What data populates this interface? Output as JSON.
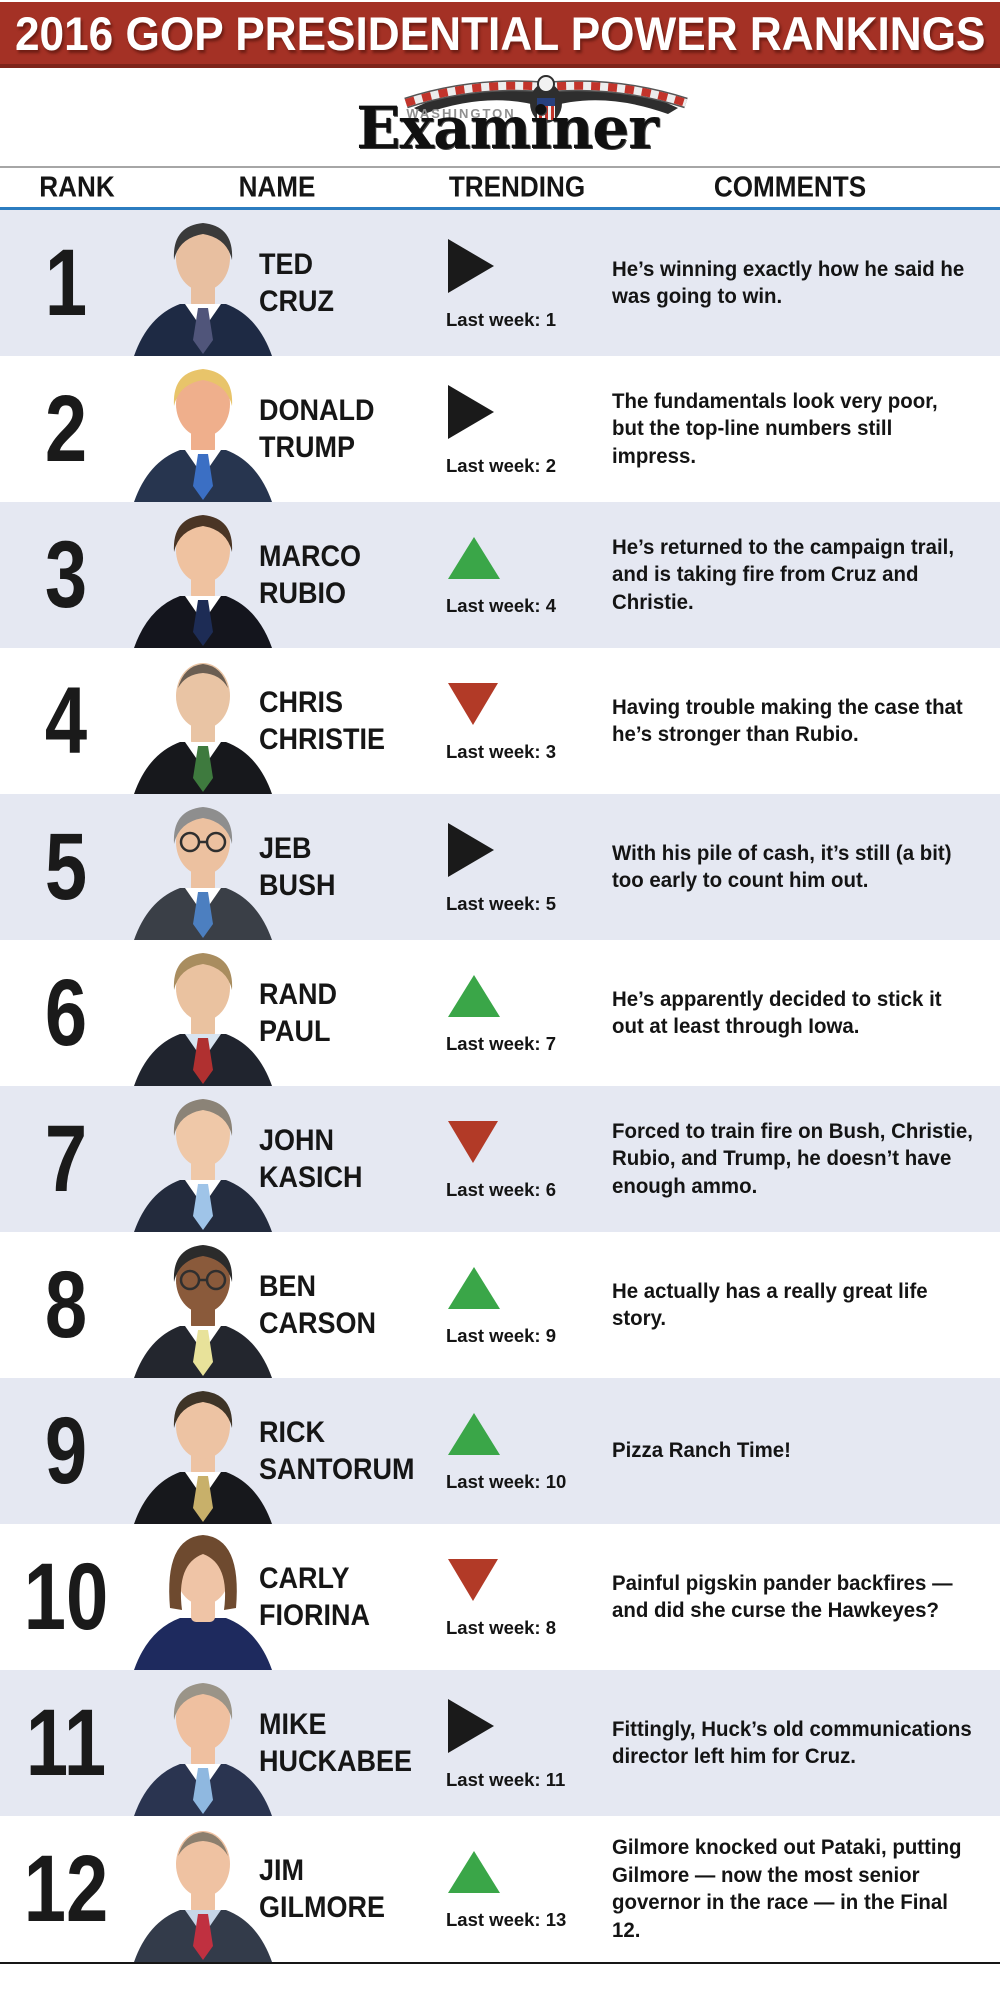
{
  "banner": {
    "title": "2016 GOP PRESIDENTIAL POWER RANKINGS"
  },
  "masthead": {
    "kicker": "WASHINGTON",
    "name": "Examiner",
    "eagle_icon": "eagle-with-striped-ribbon"
  },
  "columns": [
    "RANK",
    "NAME",
    "TRENDING",
    "COMMENTS"
  ],
  "last_week_prefix": "Last week:",
  "accent": {
    "banner_red": "#A43125",
    "divider_blue": "#2B7CC0",
    "row_alt_bg": "#E5E8F2",
    "trend_up_green": "#3AA648",
    "trend_down_red": "#B23A27",
    "trend_steady_black": "#1A1A1A"
  },
  "rows": [
    {
      "rank": "1",
      "name_line1": "TED",
      "name_line2": "CRUZ",
      "trend": "steady",
      "last_week": "1",
      "comment": "He’s winning exactly how he said he was going to win.",
      "photo": {
        "hair": "#3A3A3A",
        "skin": "#E8BFA0",
        "suit": "#1E2A44",
        "shirt": "#FFFFFF",
        "tie": "#50557A",
        "hair_style": "short",
        "glasses": false
      }
    },
    {
      "rank": "2",
      "name_line1": "DONALD",
      "name_line2": "TRUMP",
      "trend": "steady",
      "last_week": "2",
      "comment": "The fundamentals look very poor, but the top-line numbers still impress.",
      "photo": {
        "hair": "#E8C46A",
        "skin": "#EFAF8C",
        "suit": "#27354F",
        "shirt": "#FFFFFF",
        "tie": "#3B6FC4",
        "hair_style": "short",
        "glasses": false
      }
    },
    {
      "rank": "3",
      "name_line1": "MARCO",
      "name_line2": "RUBIO",
      "trend": "up",
      "last_week": "4",
      "comment": "He’s returned to the campaign trail, and is taking fire from Cruz and Christie.",
      "photo": {
        "hair": "#4A3525",
        "skin": "#EFC2A0",
        "suit": "#14151D",
        "shirt": "#FFFFFF",
        "tie": "#1D2C55",
        "hair_style": "short",
        "glasses": false
      }
    },
    {
      "rank": "4",
      "name_line1": "CHRIS",
      "name_line2": "CHRISTIE",
      "trend": "down",
      "last_week": "3",
      "comment": "Having trouble making the case that he’s stronger than Rubio.",
      "photo": {
        "hair": "#6B5E52",
        "skin": "#E9C4A4",
        "suit": "#17181C",
        "shirt": "#FFFFFF",
        "tie": "#3E7A3E",
        "hair_style": "receding",
        "glasses": false
      }
    },
    {
      "rank": "5",
      "name_line1": "JEB",
      "name_line2": "BUSH",
      "trend": "steady",
      "last_week": "5",
      "comment": "With his pile of cash, it’s still (a bit) too early to count him out.",
      "photo": {
        "hair": "#8E8E8E",
        "skin": "#ECC1A0",
        "suit": "#3A3F47",
        "shirt": "#FFFFFF",
        "tie": "#4C7FC0",
        "hair_style": "short",
        "glasses": true
      }
    },
    {
      "rank": "6",
      "name_line1": "RAND",
      "name_line2": "PAUL",
      "trend": "up",
      "last_week": "7",
      "comment": "He’s apparently decided to stick it out at least through Iowa.",
      "photo": {
        "hair": "#A98D5F",
        "skin": "#EAC2A0",
        "suit": "#20242E",
        "shirt": "#D8E4F0",
        "tie": "#B03030",
        "hair_style": "short",
        "glasses": false
      }
    },
    {
      "rank": "7",
      "name_line1": "JOHN",
      "name_line2": "KASICH",
      "trend": "down",
      "last_week": "6",
      "comment": "Forced to train fire on Bush, Christie, Rubio, and Trump, he doesn’t have enough ammo.",
      "photo": {
        "hair": "#8B8377",
        "skin": "#EFC8A8",
        "suit": "#232B3D",
        "shirt": "#FFFFFF",
        "tie": "#9FC4E8",
        "hair_style": "short",
        "glasses": false
      }
    },
    {
      "rank": "8",
      "name_line1": "BEN",
      "name_line2": "CARSON",
      "trend": "up",
      "last_week": "9",
      "comment": "He actually has a really great life story.",
      "photo": {
        "hair": "#2B2B2B",
        "skin": "#8A5A3B",
        "suit": "#23262E",
        "shirt": "#FFFFFF",
        "tie": "#E8E29A",
        "hair_style": "short",
        "glasses": true
      }
    },
    {
      "rank": "9",
      "name_line1": "RICK",
      "name_line2": "SANTORUM",
      "trend": "up",
      "last_week": "10",
      "comment": "Pizza Ranch Time!",
      "photo": {
        "hair": "#3E3427",
        "skin": "#EDC3A3",
        "suit": "#17181C",
        "shirt": "#FFFFFF",
        "tie": "#C8B06A",
        "hair_style": "short",
        "glasses": false
      }
    },
    {
      "rank": "10",
      "name_line1": "CARLY",
      "name_line2": "FIORINA",
      "trend": "down",
      "last_week": "8",
      "comment": "Painful pigskin pander backfires — and did she curse the Hawkeyes?",
      "photo": {
        "hair": "#6E4A2F",
        "skin": "#EFC4A6",
        "suit": "#1E2A5E",
        "shirt": null,
        "tie": null,
        "hair_style": "bob",
        "glasses": false
      }
    },
    {
      "rank": "11",
      "name_line1": "MIKE",
      "name_line2": "HUCKABEE",
      "trend": "steady",
      "last_week": "11",
      "comment": "Fittingly, Huck’s old communications director left him for Cruz.",
      "photo": {
        "hair": "#9A9488",
        "skin": "#EFC0A0",
        "suit": "#2A3450",
        "shirt": "#FFFFFF",
        "tie": "#8FB8E0",
        "hair_style": "short",
        "glasses": false
      }
    },
    {
      "rank": "12",
      "name_line1": "JIM",
      "name_line2": "GILMORE",
      "trend": "up",
      "last_week": "13",
      "comment": "Gilmore knocked out Pataki, putting Gilmore — now the most senior governor in the race — in the Final 12.",
      "photo": {
        "hair": "#8C7F6E",
        "skin": "#EFC2A2",
        "suit": "#333B4A",
        "shirt": "#C7D6E8",
        "tie": "#C03040",
        "hair_style": "receding",
        "glasses": false
      }
    }
  ],
  "chart_data": {
    "type": "table",
    "title": "2016 GOP Presidential Power Rankings",
    "columns": [
      "RANK",
      "NAME",
      "TRENDING",
      "LAST WEEK",
      "COMMENTS"
    ],
    "rows": [
      [
        1,
        "Ted Cruz",
        "steady",
        1,
        "He’s winning exactly how he said he was going to win."
      ],
      [
        2,
        "Donald Trump",
        "steady",
        2,
        "The fundamentals look very poor, but the top-line numbers still impress."
      ],
      [
        3,
        "Marco Rubio",
        "up",
        4,
        "He’s returned to the campaign trail, and is taking fire from Cruz and Christie."
      ],
      [
        4,
        "Chris Christie",
        "down",
        3,
        "Having trouble making the case that he’s stronger than Rubio."
      ],
      [
        5,
        "Jeb Bush",
        "steady",
        5,
        "With his pile of cash, it’s still (a bit) too early to count him out."
      ],
      [
        6,
        "Rand Paul",
        "up",
        7,
        "He’s apparently decided to stick it out at least through Iowa."
      ],
      [
        7,
        "John Kasich",
        "down",
        6,
        "Forced to train fire on Bush, Christie, Rubio, and Trump, he doesn’t have enough ammo."
      ],
      [
        8,
        "Ben Carson",
        "up",
        9,
        "He actually has a really great life story."
      ],
      [
        9,
        "Rick Santorum",
        "up",
        10,
        "Pizza Ranch Time!"
      ],
      [
        10,
        "Carly Fiorina",
        "down",
        8,
        "Painful pigskin pander backfires — and did she curse the Hawkeyes?"
      ],
      [
        11,
        "Mike Huckabee",
        "steady",
        11,
        "Fittingly, Huck’s old communications director left him for Cruz."
      ],
      [
        12,
        "Jim Gilmore",
        "up",
        13,
        "Gilmore knocked out Pataki, putting Gilmore — now the most senior governor in the race — in the Final 12."
      ]
    ]
  }
}
